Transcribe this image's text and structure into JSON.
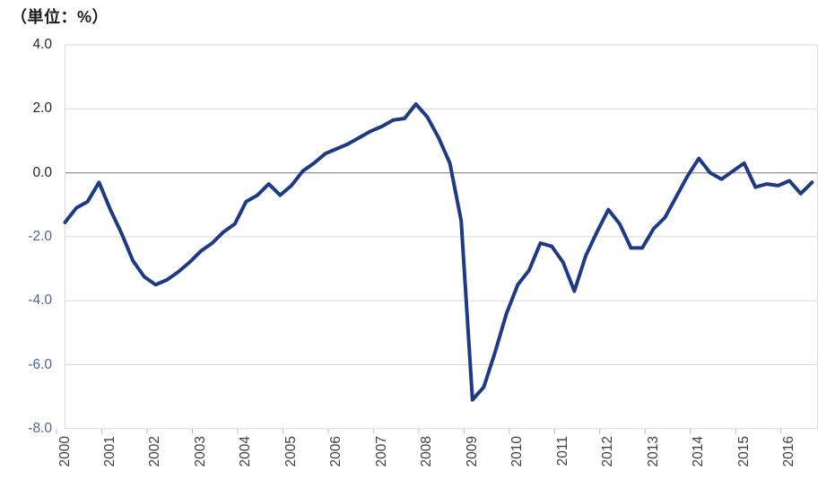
{
  "header": {
    "unit_label": "（単位：%）"
  },
  "chart_data": {
    "type": "line",
    "title": "",
    "unit": "%",
    "frequency": "quarterly",
    "x_start": "2000Q1",
    "x_end": "2016Q3",
    "years": [
      "2000",
      "2001",
      "2002",
      "2003",
      "2004",
      "2005",
      "2006",
      "2007",
      "2008",
      "2009",
      "2010",
      "2011",
      "2012",
      "2013",
      "2014",
      "2015",
      "2016"
    ],
    "y_ticks": [
      {
        "label": "4.0",
        "value": 4
      },
      {
        "label": "2.0",
        "value": 2
      },
      {
        "label": "0.0",
        "value": 0
      },
      {
        "label": "-2.0",
        "value": -2
      },
      {
        "label": "-4.0",
        "value": -4
      },
      {
        "label": "-6.0",
        "value": -6
      },
      {
        "label": "-8.0",
        "value": -8
      }
    ],
    "ylim": [
      -8,
      4
    ],
    "grid": true,
    "legend": "none",
    "series": [
      {
        "name": "gdp-gap",
        "values": [
          -1.55,
          -1.1,
          -0.9,
          -0.3,
          -1.15,
          -1.9,
          -2.75,
          -3.25,
          -3.5,
          -3.35,
          -3.1,
          -2.8,
          -2.45,
          -2.2,
          -1.85,
          -1.6,
          -0.9,
          -0.7,
          -0.35,
          -0.7,
          -0.4,
          0.05,
          0.3,
          0.6,
          0.75,
          0.9,
          1.1,
          1.3,
          1.45,
          1.65,
          1.7,
          2.15,
          1.75,
          1.1,
          0.3,
          -1.5,
          -7.1,
          -6.7,
          -5.6,
          -4.4,
          -3.5,
          -3.05,
          -2.2,
          -2.3,
          -2.8,
          -3.7,
          -2.6,
          -1.85,
          -1.15,
          -1.6,
          -2.35,
          -2.35,
          -1.75,
          -1.4,
          -0.75,
          -0.1,
          0.45,
          0.0,
          -0.2,
          0.05,
          0.3,
          -0.45,
          -0.35,
          -0.4,
          -0.25,
          -0.65,
          -0.3
        ]
      }
    ],
    "colors": {
      "line": "#1e3a85",
      "grid": "#d9d9d9",
      "zero_line": "#949494",
      "border": "#d9d9d9",
      "tick": "#c0c0c0",
      "y_label_positive": "#262626",
      "y_label_negative": "#4f5ea6",
      "x_label": "#404040"
    }
  }
}
